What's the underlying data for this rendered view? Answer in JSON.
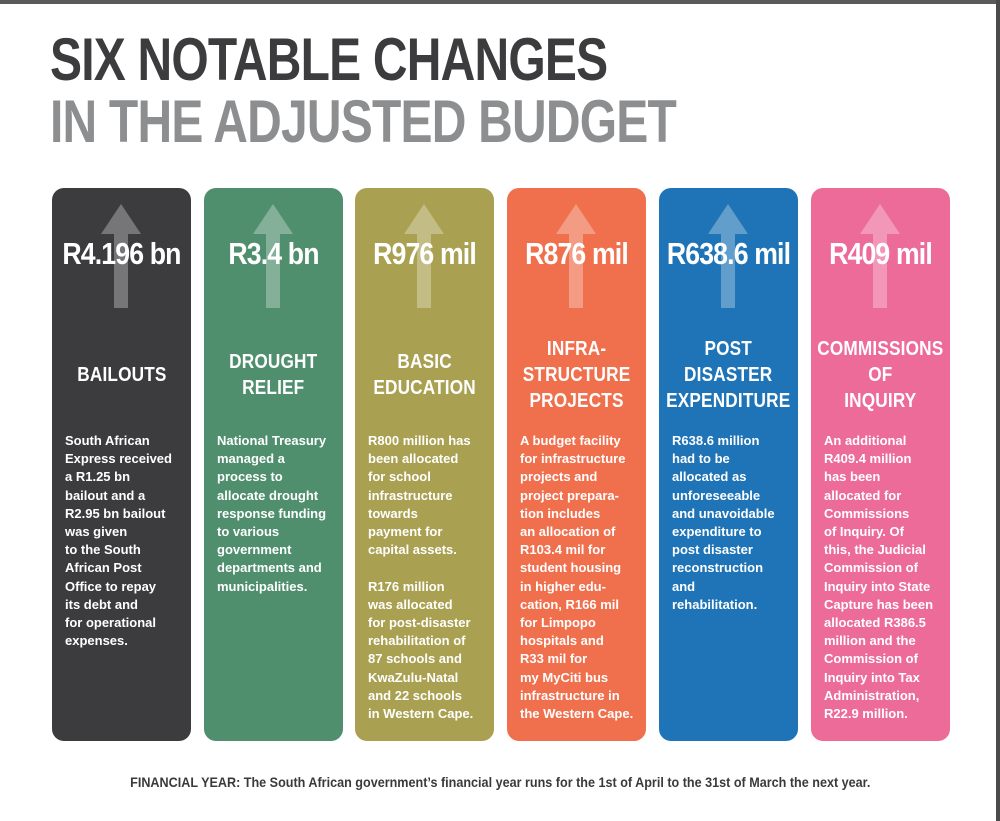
{
  "title": {
    "line1": "SIX NOTABLE CHANGES",
    "line2": "IN THE ADJUSTED BUDGET"
  },
  "arrow_icon": "up-arrow-icon",
  "cards": [
    {
      "color": "#3c3c3e",
      "amount": "R4.196 bn",
      "heading": "BAILOUTS",
      "body": "South African\nExpress received\na R1.25 bn\nbailout and a\nR2.95 bn bailout\nwas given\nto the South\nAfrican Post\nOffice to repay\nits debt and\nfor operational\nexpenses."
    },
    {
      "color": "#4f8f6e",
      "amount": "R3.4 bn",
      "heading": "DROUGHT\nRELIEF",
      "body": "National Treasury\nmanaged a\nprocess to\nallocate drought\nresponse funding\nto various\ngovernment\ndepartments and\nmunicipalities."
    },
    {
      "color": "#a9a051",
      "amount": "R976 mil",
      "heading": "BASIC\nEDUCATION",
      "body": "R800 million has\nbeen allocated\nfor school\ninfrastructure\ntowards\npayment for\ncapital assets.\n\nR176 million\nwas allocated\nfor post-disaster\nrehabilitation of\n87 schools and\nKwaZulu-Natal\nand 22 schools\nin Western Cape."
    },
    {
      "color": "#f0704e",
      "amount": "R876 mil",
      "heading": "INFRA-\nSTRUCTURE\nPROJECTS",
      "body": "A budget facility\nfor infrastructure\nprojects and\nproject prepara-\ntion includes\nan allocation of\nR103.4 mil for\nstudent housing\nin higher edu-\ncation,  R166 mil\nfor Limpopo\nhospitals and\nR33 mil for\nmy MyCiti bus\ninfrastructure in\nthe Western Cape."
    },
    {
      "color": "#1e74b7",
      "amount": "R638.6 mil",
      "heading": "POST\nDISASTER\nEXPENDITURE",
      "body": "R638.6 million\nhad to be\nallocated as\nunforeseeable\nand unavoidable\nexpenditure to\npost disaster\nreconstruction\nand\nrehabilitation."
    },
    {
      "color": "#ec6b98",
      "amount": "R409 mil",
      "heading": "COMMISSIONS\nOF\nINQUIRY",
      "body": "An additional\nR409.4 million\nhas been\nallocated for\nCommissions\nof Inquiry. Of\nthis, the Judicial\nCommission of\nInquiry into State\nCapture has been\nallocated R386.5\nmillion and the\nCommission of\nInquiry into Tax\nAdministration,\nR22.9 million."
    }
  ],
  "footer": "FINANCIAL YEAR: The South African government’s financial year runs for the 1st of April to the 31st of March the next year."
}
